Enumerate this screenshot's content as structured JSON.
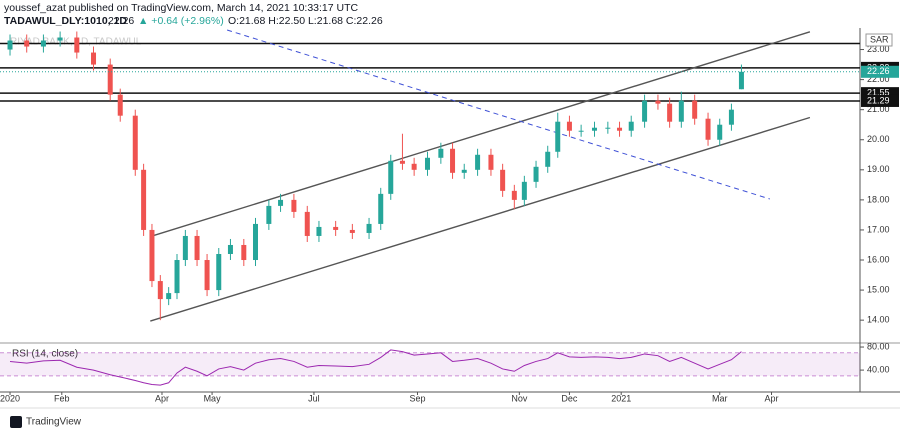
{
  "header": {
    "publisher": "youssef_azat published on TradingView.com, March 14, 2021 10:33:17 UTC",
    "symbol": "TADAWUL_DLY:1010, 1D",
    "last": "22.26",
    "change": "▲ +0.64 (+2.96%)",
    "ohlc": "O:21.68 H:22.50 L:21.68 C:22.26"
  },
  "footer": {
    "brand": "TradingView"
  },
  "chart_data": [
    {
      "type": "candlestick",
      "title": "RIYAD BANK, 1D, TADAWUL",
      "currency": "SAR",
      "up_color": "#26a69a",
      "down_color": "#ef5350",
      "x": [
        0,
        10,
        20,
        30,
        40,
        50,
        60,
        66,
        75,
        80,
        85,
        90,
        95,
        100,
        105,
        112,
        118,
        125,
        132,
        140,
        147,
        155,
        162,
        170,
        178,
        185,
        195,
        205,
        215,
        222,
        228,
        235,
        242,
        250,
        258,
        265,
        272,
        280,
        288,
        295,
        302,
        308,
        315,
        322,
        328,
        335,
        342,
        350,
        358,
        365,
        372,
        380,
        388,
        395,
        402,
        410,
        418,
        425,
        432,
        438
      ],
      "open": [
        23.0,
        23.3,
        23.1,
        23.3,
        23.4,
        22.9,
        22.5,
        21.5,
        20.8,
        19.0,
        17.0,
        15.3,
        14.7,
        14.9,
        16.0,
        16.8,
        16.0,
        15.0,
        16.2,
        16.5,
        16.0,
        17.2,
        17.8,
        18.0,
        17.6,
        16.8,
        17.1,
        17.0,
        16.9,
        17.2,
        18.2,
        19.3,
        19.2,
        19.0,
        19.4,
        19.7,
        18.9,
        19.0,
        19.5,
        19.0,
        18.3,
        18.0,
        18.6,
        19.1,
        19.6,
        20.6,
        20.3,
        20.3,
        20.4,
        20.4,
        20.3,
        20.6,
        21.3,
        21.2,
        20.6,
        21.3,
        20.7,
        20.0,
        20.5,
        21.68
      ],
      "high": [
        23.5,
        23.5,
        23.5,
        23.6,
        23.6,
        23.1,
        22.7,
        21.7,
        21.0,
        19.2,
        17.2,
        15.5,
        15.1,
        16.2,
        17.0,
        17.0,
        16.2,
        16.4,
        16.7,
        16.7,
        17.4,
        18.0,
        18.2,
        18.2,
        17.8,
        17.3,
        17.3,
        17.2,
        17.4,
        18.4,
        19.5,
        20.2,
        19.4,
        19.6,
        19.9,
        19.9,
        19.2,
        19.7,
        19.7,
        19.2,
        18.5,
        18.8,
        19.3,
        19.8,
        20.9,
        20.8,
        20.5,
        20.6,
        20.6,
        20.6,
        20.8,
        21.5,
        21.5,
        21.4,
        21.6,
        21.5,
        20.9,
        20.7,
        21.2,
        22.5
      ],
      "low": [
        22.8,
        22.9,
        22.9,
        23.1,
        22.7,
        22.3,
        21.3,
        20.6,
        18.8,
        16.8,
        15.1,
        14.0,
        14.5,
        14.7,
        15.8,
        15.8,
        14.8,
        14.8,
        16.0,
        15.8,
        15.8,
        17.0,
        17.6,
        17.4,
        16.6,
        16.6,
        16.8,
        16.7,
        16.7,
        17.0,
        18.0,
        19.0,
        18.8,
        18.8,
        19.2,
        18.7,
        18.7,
        18.8,
        18.8,
        18.1,
        17.7,
        17.8,
        18.4,
        18.9,
        19.4,
        20.1,
        20.1,
        20.1,
        20.2,
        20.1,
        20.1,
        20.4,
        21.0,
        20.4,
        20.4,
        20.5,
        19.8,
        19.8,
        20.3,
        21.68
      ],
      "close": [
        23.3,
        23.1,
        23.3,
        23.4,
        22.9,
        22.5,
        21.5,
        20.8,
        19.0,
        17.0,
        15.3,
        14.7,
        14.9,
        16.0,
        16.8,
        16.0,
        15.0,
        16.2,
        16.5,
        16.0,
        17.2,
        17.8,
        18.0,
        17.6,
        16.8,
        17.1,
        17.0,
        16.9,
        17.2,
        18.2,
        19.3,
        19.2,
        19.0,
        19.4,
        19.7,
        18.9,
        19.0,
        19.5,
        19.0,
        18.3,
        18.0,
        18.6,
        19.1,
        19.6,
        20.6,
        20.3,
        20.3,
        20.4,
        20.4,
        20.3,
        20.6,
        21.3,
        21.2,
        20.6,
        21.3,
        20.7,
        20.0,
        20.5,
        21.0,
        22.26
      ],
      "xlim": [
        -6,
        509
      ],
      "ylim": [
        13.24,
        23.65
      ],
      "yticks": [
        {
          "value": 14,
          "label": "14.00"
        },
        {
          "value": 15,
          "label": "15.00"
        },
        {
          "value": 16,
          "label": "16.00"
        },
        {
          "value": 17,
          "label": "17.00"
        },
        {
          "value": 18,
          "label": "18.00"
        },
        {
          "value": 19,
          "label": "19.00"
        },
        {
          "value": 20,
          "label": "20.00"
        },
        {
          "value": 21,
          "label": "21.00"
        },
        {
          "value": 22,
          "label": "22.00"
        },
        {
          "value": 23,
          "label": "23.00"
        }
      ],
      "levels": [
        22.39,
        21.55,
        21.29
      ],
      "top_level": 23.2,
      "trend_lines": [
        {
          "x": [
            84,
            479
          ],
          "y": [
            16.78,
            23.59
          ],
          "color": "#555555"
        },
        {
          "x": [
            84,
            479
          ],
          "y": [
            13.97,
            20.74
          ],
          "color": "#555555"
        },
        {
          "x": [
            130,
            455
          ],
          "y": [
            23.65,
            18.03
          ],
          "color": "#3f51d6",
          "dashed": true
        }
      ]
    },
    {
      "type": "line",
      "title": "RSI (14, close)",
      "color": "#9c27b0",
      "values": [
        55,
        52,
        56,
        57,
        45,
        40,
        32,
        28,
        22,
        18,
        15,
        14,
        18,
        35,
        45,
        38,
        30,
        42,
        46,
        40,
        52,
        58,
        60,
        55,
        45,
        48,
        47,
        46,
        50,
        62,
        75,
        72,
        66,
        68,
        70,
        55,
        57,
        60,
        52,
        42,
        38,
        48,
        55,
        60,
        70,
        63,
        62,
        63,
        62,
        60,
        62,
        68,
        65,
        55,
        62,
        52,
        42,
        50,
        58,
        72
      ],
      "ylim": [
        2,
        87
      ],
      "yticks": [
        {
          "value": 40,
          "label": "40.00"
        },
        {
          "value": 80,
          "label": "80.00"
        }
      ],
      "bands": [
        30,
        70
      ],
      "xticks": [
        {
          "value": 0,
          "label": "2020"
        },
        {
          "value": 31,
          "label": "Feb"
        },
        {
          "value": 91,
          "label": "Apr"
        },
        {
          "value": 121,
          "label": "May"
        },
        {
          "value": 182,
          "label": "Jul"
        },
        {
          "value": 244,
          "label": "Sep"
        },
        {
          "value": 305,
          "label": "Nov"
        },
        {
          "value": 335,
          "label": "Dec"
        },
        {
          "value": 366,
          "label": "2021"
        },
        {
          "value": 425,
          "label": "Mar"
        },
        {
          "value": 456,
          "label": "Apr"
        }
      ]
    }
  ]
}
